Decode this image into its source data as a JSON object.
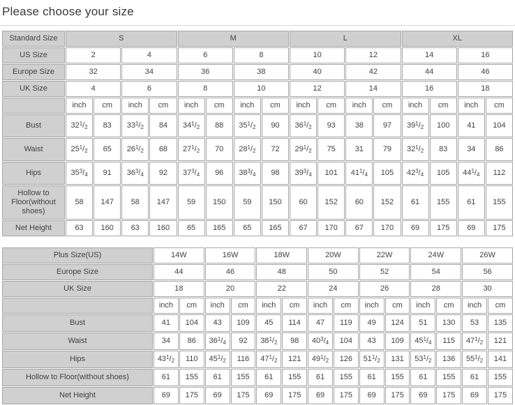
{
  "page": {
    "title": "Please choose your size"
  },
  "colors": {
    "header_bg": "#d0d0d0",
    "cell_bg": "#ffffff",
    "border": "#a5a5a5",
    "text": "#414141",
    "title_text": "#3a3a3a",
    "divider": "#d9d9d9"
  },
  "units": [
    "inch",
    "cm"
  ],
  "standard_table": {
    "group_label": "Standard Size",
    "groups": [
      "S",
      "M",
      "L",
      "XL"
    ],
    "size_rows": [
      {
        "label": "US Size",
        "values": [
          "2",
          "4",
          "6",
          "8",
          "10",
          "12",
          "14",
          "16"
        ]
      },
      {
        "label": "Europe Size",
        "values": [
          "32",
          "34",
          "36",
          "38",
          "40",
          "42",
          "44",
          "46"
        ]
      },
      {
        "label": "UK Size",
        "values": [
          "4",
          "6",
          "8",
          "10",
          "12",
          "14",
          "16",
          "18"
        ]
      }
    ],
    "measure_rows": [
      {
        "label": "Bust",
        "tall": true,
        "values": [
          "32 1/2",
          "83",
          "33 1/2",
          "84",
          "34 1/2",
          "88",
          "35 1/2",
          "90",
          "36 1/2",
          "93",
          "38",
          "97",
          "39 1/2",
          "100",
          "41",
          "104"
        ]
      },
      {
        "label": "Waist",
        "tall": true,
        "values": [
          "25 1/2",
          "65",
          "26 1/2",
          "68",
          "27 1/2",
          "70",
          "28 1/2",
          "72",
          "29 1/2",
          "75",
          "31",
          "79",
          "32 1/2",
          "83",
          "34",
          "86"
        ]
      },
      {
        "label": "Hips",
        "tall": true,
        "values": [
          "35 3/4",
          "91",
          "36 3/4",
          "92",
          "37 3/4",
          "96",
          "38 3/4",
          "98",
          "39 3/4",
          "101",
          "41 1/4",
          "105",
          "42 3/4",
          "105",
          "44 1/4",
          "112"
        ]
      },
      {
        "label": "Hollow to Floor(without shoes)",
        "tall": false,
        "values": [
          "58",
          "147",
          "58",
          "147",
          "59",
          "150",
          "59",
          "150",
          "60",
          "152",
          "60",
          "152",
          "61",
          "155",
          "61",
          "155"
        ]
      },
      {
        "label": "Net Height",
        "tall": false,
        "values": [
          "63",
          "160",
          "63",
          "160",
          "65",
          "165",
          "65",
          "165",
          "67",
          "170",
          "67",
          "170",
          "69",
          "175",
          "69",
          "175"
        ]
      }
    ]
  },
  "plus_table": {
    "size_rows": [
      {
        "label": "Plus Size(US)",
        "values": [
          "14W",
          "16W",
          "18W",
          "20W",
          "22W",
          "24W",
          "26W"
        ]
      },
      {
        "label": "Europe Size",
        "values": [
          "44",
          "46",
          "48",
          "50",
          "52",
          "54",
          "56"
        ]
      },
      {
        "label": "UK Size",
        "values": [
          "18",
          "20",
          "22",
          "24",
          "26",
          "28",
          "30"
        ]
      }
    ],
    "measure_rows": [
      {
        "label": "Bust",
        "values": [
          "41",
          "104",
          "43",
          "109",
          "45",
          "114",
          "47",
          "119",
          "49",
          "124",
          "51",
          "130",
          "53",
          "135"
        ]
      },
      {
        "label": "Waist",
        "values": [
          "34",
          "86",
          "36 1/4",
          "92",
          "38 1/2",
          "98",
          "40 3/4",
          "104",
          "43",
          "109",
          "45 1/4",
          "115",
          "47 1/2",
          "121"
        ]
      },
      {
        "label": "Hips",
        "values": [
          "43 1/2",
          "110",
          "45 1/2",
          "116",
          "47 1/2",
          "121",
          "49 1/2",
          "126",
          "51 1/2",
          "131",
          "53 1/2",
          "136",
          "55 1/2",
          "141"
        ]
      },
      {
        "label": "Hollow to Floor(without shoes)",
        "values": [
          "61",
          "155",
          "61",
          "155",
          "61",
          "155",
          "61",
          "155",
          "61",
          "155",
          "61",
          "155",
          "61",
          "155"
        ]
      },
      {
        "label": "Net Height",
        "values": [
          "69",
          "175",
          "69",
          "175",
          "69",
          "175",
          "69",
          "175",
          "69",
          "175",
          "69",
          "175",
          "69",
          "175"
        ]
      }
    ]
  }
}
